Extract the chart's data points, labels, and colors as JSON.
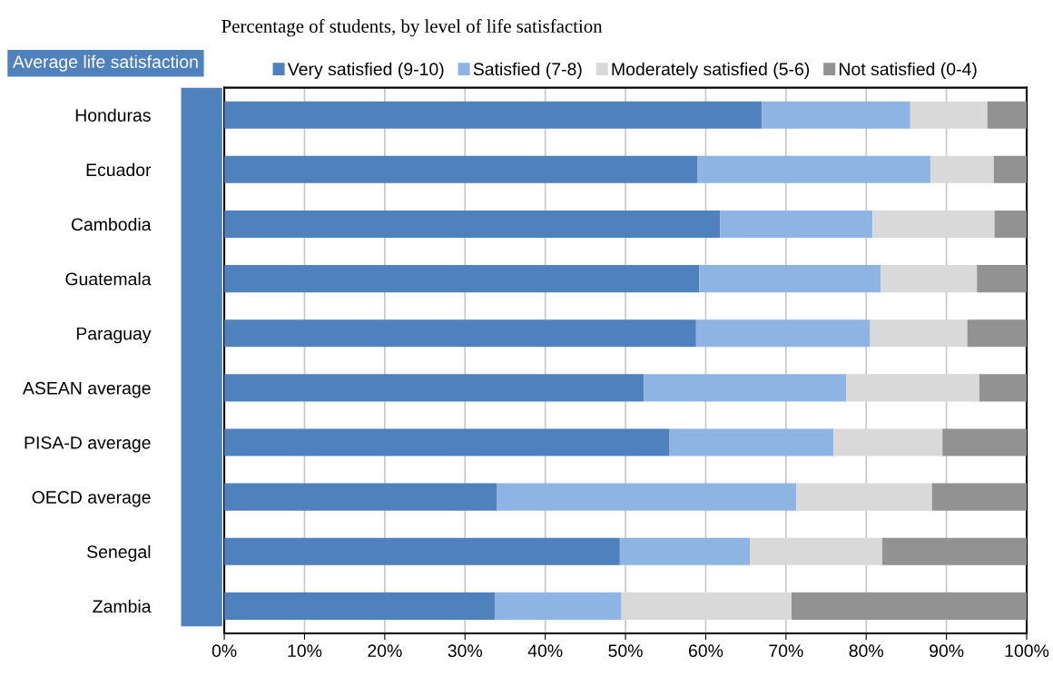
{
  "chart_data": {
    "type": "bar",
    "orientation": "horizontal",
    "stacked": true,
    "title": "Percentage of students, by level of life satisfaction",
    "annotations": [
      "Average life satisfaction"
    ],
    "categories": [
      "Honduras",
      "Ecuador",
      "Cambodia",
      "Guatemala",
      "Paraguay",
      "ASEAN average",
      "PISA-D average",
      "OECD average",
      "Senegal",
      "Zambia"
    ],
    "series": [
      {
        "name": "Very satisfied (9-10)",
        "color": "#4f81bd",
        "values": [
          67.0,
          59.0,
          61.8,
          59.2,
          58.8,
          52.3,
          55.5,
          34.0,
          49.3,
          33.7
        ]
      },
      {
        "name": "Satisfied (7-8)",
        "color": "#8eb4e3",
        "values": [
          18.5,
          29.0,
          19.0,
          22.6,
          21.7,
          25.2,
          20.4,
          37.3,
          16.2,
          15.8
        ]
      },
      {
        "name": "Moderately satisfied (5-6)",
        "color": "#d9d9d9",
        "values": [
          9.6,
          7.9,
          15.2,
          12.0,
          12.1,
          16.6,
          13.6,
          16.9,
          16.5,
          21.2
        ]
      },
      {
        "name": "Not satisfied (0-4)",
        "color": "#929292",
        "values": [
          4.9,
          4.1,
          4.0,
          6.2,
          7.4,
          5.9,
          10.5,
          11.8,
          18.0,
          29.3
        ]
      }
    ],
    "xlim": [
      0,
      100
    ],
    "xticks": [
      {
        "value": 0,
        "label": "0%"
      },
      {
        "value": 10,
        "label": "10%"
      },
      {
        "value": 20,
        "label": "20%"
      },
      {
        "value": 30,
        "label": "30%"
      },
      {
        "value": 40,
        "label": "40%"
      },
      {
        "value": 50,
        "label": "50%"
      },
      {
        "value": 60,
        "label": "60%"
      },
      {
        "value": 70,
        "label": "70%"
      },
      {
        "value": 80,
        "label": "80%"
      },
      {
        "value": 90,
        "label": "90%"
      },
      {
        "value": 100,
        "label": "100%"
      }
    ],
    "grid": "x",
    "legend": "top"
  }
}
